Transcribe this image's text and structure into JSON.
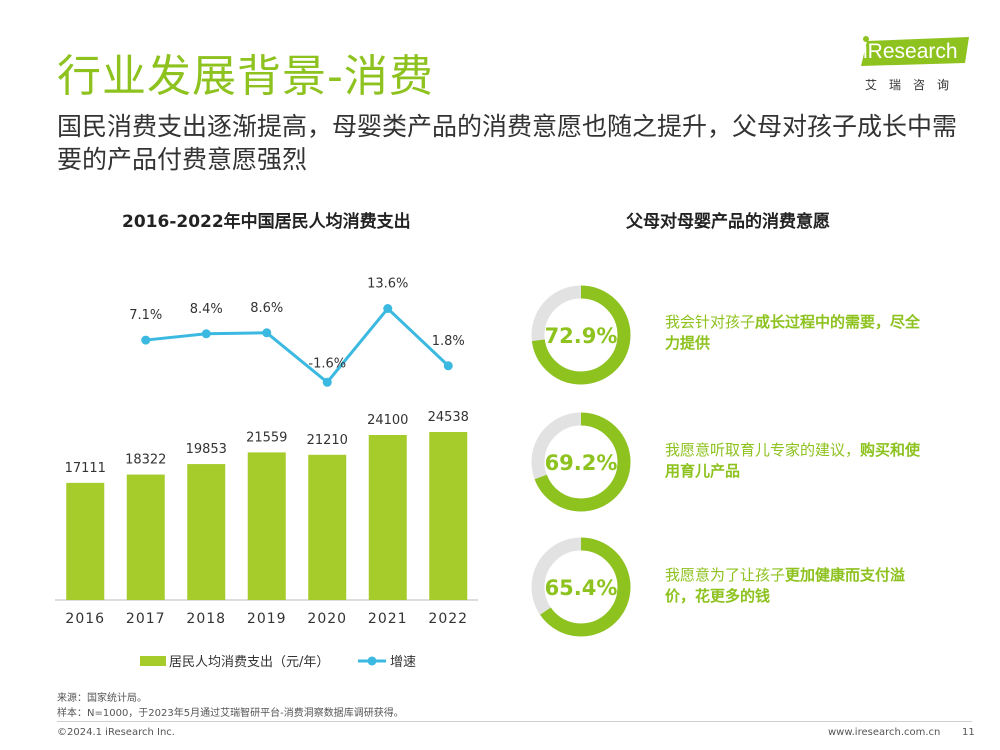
{
  "slide": {
    "title": "行业发展背景-消费",
    "subtitle": "国民消费支出逐渐提高，母婴类产品的消费意愿也随之提升，父母对孩子成长中需要的产品付费意愿强烈"
  },
  "logo": {
    "wordmark": "iResearch",
    "subtitle": "艾瑞咨询"
  },
  "left_chart_title": "2016-2022年中国居民人均消费支出",
  "right_chart_title": "父母对母婴产品的消费意愿",
  "colors": {
    "accent": "#8dc21f",
    "bar": "#a5cc2a",
    "line": "#3bb9e0",
    "track": "#e2e2e2"
  },
  "chart_data": [
    {
      "type": "bar",
      "title": "2016-2022年中国居民人均消费支出",
      "categories": [
        "2016",
        "2017",
        "2018",
        "2019",
        "2020",
        "2021",
        "2022"
      ],
      "series": [
        {
          "name": "居民人均消费支出（元/年）",
          "type": "bar",
          "values": [
            17111,
            18322,
            19853,
            21559,
            21210,
            24100,
            24538
          ],
          "labels": [
            "17111",
            "18322",
            "19853",
            "21559",
            "21210",
            "24100",
            "24538"
          ]
        },
        {
          "name": "增速",
          "type": "line",
          "values": [
            7.1,
            8.4,
            8.6,
            -1.6,
            13.6,
            1.8
          ],
          "x": [
            "2017",
            "2018",
            "2019",
            "2020",
            "2021",
            "2022"
          ],
          "labels": [
            "7.1%",
            "8.4%",
            "8.6%",
            "-1.6%",
            "13.6%",
            "1.8%"
          ]
        }
      ],
      "legend": "bottom",
      "grid": false
    },
    {
      "type": "pie",
      "title": "父母对母婴产品的消费意愿",
      "items": [
        {
          "value": 72.9,
          "label": "72.9%",
          "text_parts": [
            {
              "t": "我会针对孩子",
              "b": false
            },
            {
              "t": "成长过程中的需要，尽全力提供",
              "b": true
            }
          ]
        },
        {
          "value": 69.2,
          "label": "69.2%",
          "text_parts": [
            {
              "t": "我愿意听取育儿专家的建议，",
              "b": false
            },
            {
              "t": "购买和使用育儿产品",
              "b": true
            }
          ]
        },
        {
          "value": 65.4,
          "label": "65.4%",
          "text_parts": [
            {
              "t": "我愿意为了让孩子",
              "b": false
            },
            {
              "t": "更加健康而支付溢价，花更多的钱",
              "b": true
            }
          ]
        }
      ]
    }
  ],
  "footer": {
    "source": "来源：国家统计局。",
    "sample": "样本：N=1000，于2023年5月通过艾瑞智研平台-消费洞察数据库调研获得。",
    "copyright": "©2024.1 iResearch Inc.",
    "site": "www.iresearch.com.cn",
    "page": "11"
  }
}
